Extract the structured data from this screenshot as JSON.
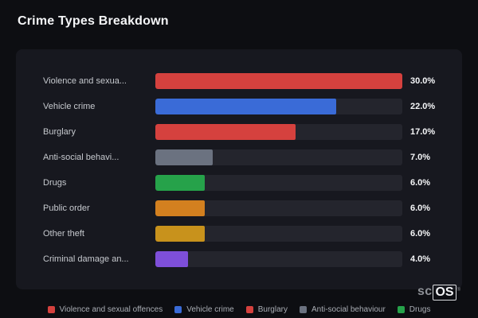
{
  "page": {
    "title": "Crime Types Breakdown"
  },
  "chart_data": {
    "type": "bar",
    "orientation": "horizontal",
    "title": "Crime Types Breakdown",
    "xlim": [
      0,
      30
    ],
    "max_value": 30,
    "grid": false,
    "legend_position": "bottom",
    "categories": [
      "Violence and sexua...",
      "Vehicle crime",
      "Burglary",
      "Anti-social behavi...",
      "Drugs",
      "Public order",
      "Other theft",
      "Criminal damage an..."
    ],
    "values": [
      30.0,
      22.0,
      17.0,
      7.0,
      6.0,
      6.0,
      6.0,
      4.0
    ],
    "rows": [
      {
        "label": "Violence and sexua...",
        "value": 30.0,
        "display": "30.0%",
        "color": "#d5413e"
      },
      {
        "label": "Vehicle crime",
        "value": 22.0,
        "display": "22.0%",
        "color": "#3a6bd7"
      },
      {
        "label": "Burglary",
        "value": 17.0,
        "display": "17.0%",
        "color": "#d5413e"
      },
      {
        "label": "Anti-social behavi...",
        "value": 7.0,
        "display": "7.0%",
        "color": "#6b7280"
      },
      {
        "label": "Drugs",
        "value": 6.0,
        "display": "6.0%",
        "color": "#26a24a"
      },
      {
        "label": "Public order",
        "value": 6.0,
        "display": "6.0%",
        "color": "#d3801f"
      },
      {
        "label": "Other theft",
        "value": 6.0,
        "display": "6.0%",
        "color": "#c8921c"
      },
      {
        "label": "Criminal damage an...",
        "value": 4.0,
        "display": "4.0%",
        "color": "#7e4fd9"
      }
    ]
  },
  "legend": [
    {
      "label": "Violence and sexual offences",
      "color": "#d5413e"
    },
    {
      "label": "Vehicle crime",
      "color": "#3a6bd7"
    },
    {
      "label": "Burglary",
      "color": "#d5413e"
    },
    {
      "label": "Anti-social behaviour",
      "color": "#6b7280"
    },
    {
      "label": "Drugs",
      "color": "#26a24a"
    }
  ],
  "branding": {
    "prefix": "sc",
    "suffix": "OS",
    "registered": "®"
  },
  "colors": {
    "background": "#0d0e12",
    "card": "#17181f",
    "track": "#24252d",
    "label_text": "#c6c9ce",
    "value_text": "#f5f6f8"
  }
}
